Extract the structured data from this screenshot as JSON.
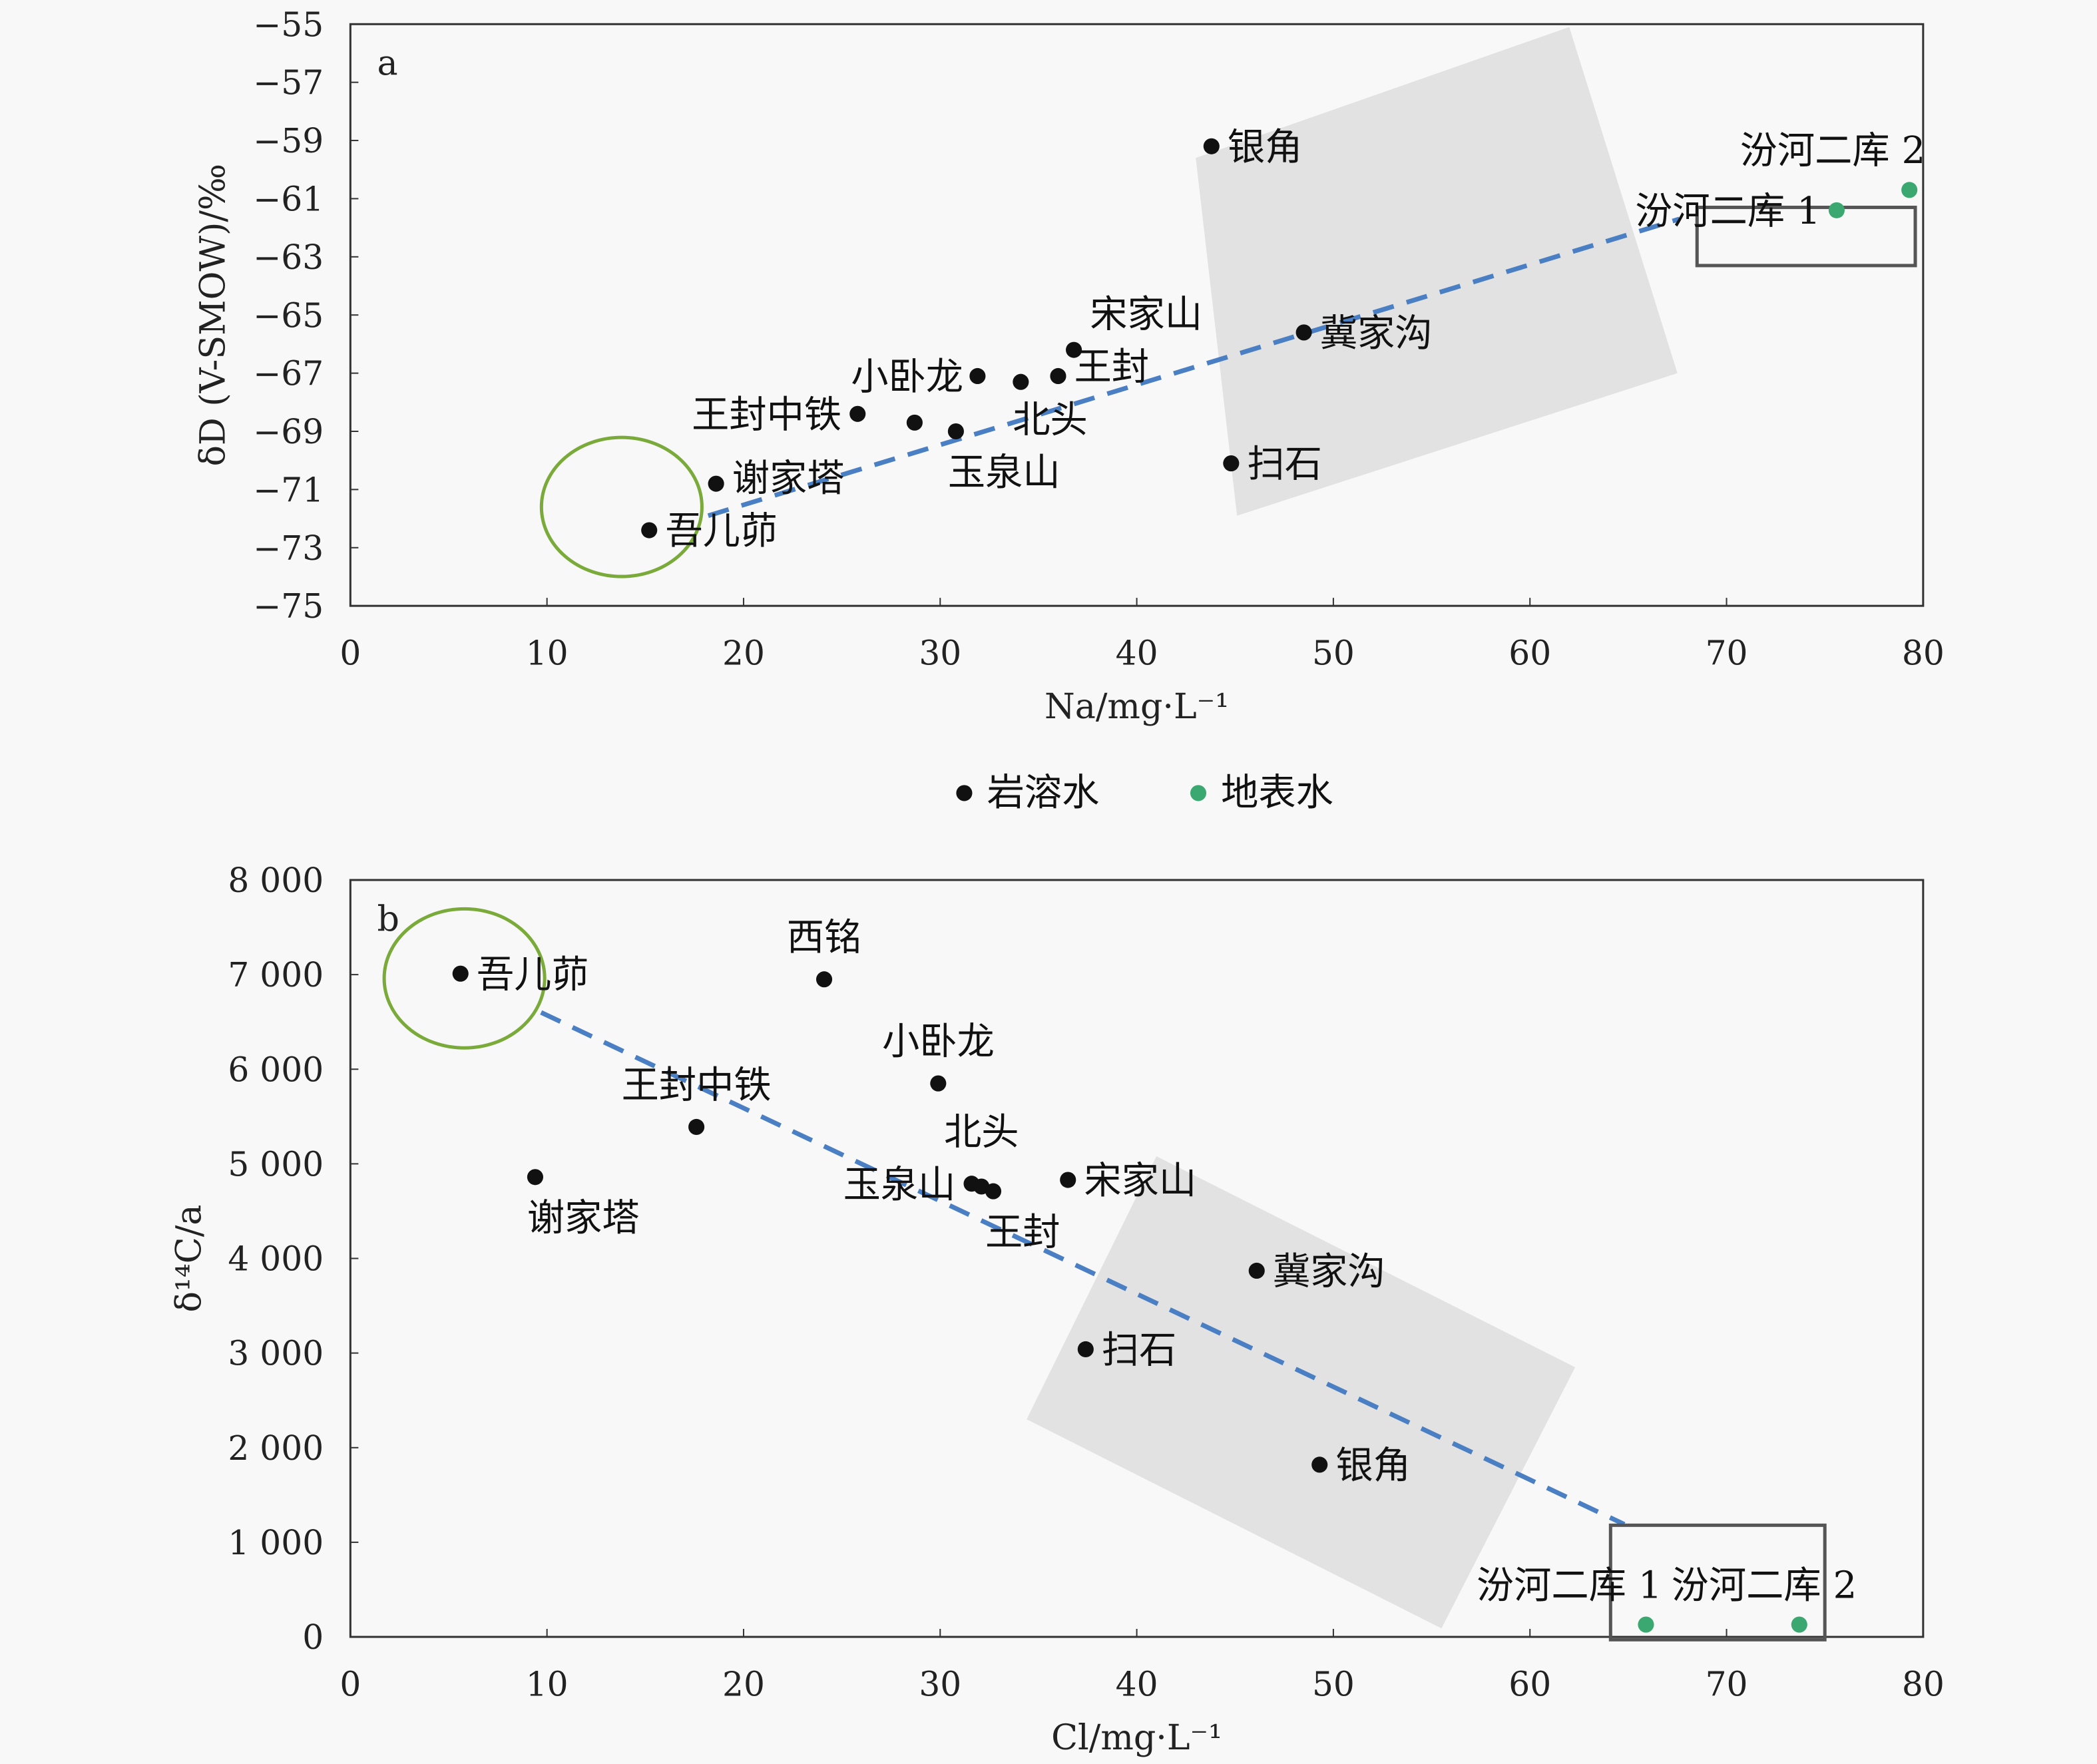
{
  "legend": [
    {
      "name": "岩溶水",
      "color": "#111111"
    },
    {
      "name": "地表水",
      "color": "#3aa870"
    }
  ],
  "chart_data": [
    {
      "type": "scatter",
      "panel_label": "a",
      "xlabel": "Na/mg·L⁻¹",
      "ylabel": "δD (V-SMOW)/‰",
      "xlim": [
        0,
        80
      ],
      "ylim": [
        -75,
        -55
      ],
      "xticks": [
        "0",
        "10",
        "20",
        "30",
        "40",
        "50",
        "60",
        "70",
        "80"
      ],
      "yticks": [
        "−55",
        "−57",
        "−59",
        "−61",
        "−63",
        "−65",
        "−67",
        "−69",
        "−71",
        "−73",
        "−75"
      ],
      "trendline": {
        "x": [
          18.2,
          67.6
        ],
        "y": [
          -71.9,
          -61.7
        ]
      },
      "points": [
        {
          "label": "吾儿茆",
          "x": 15.2,
          "y": -72.4,
          "type": "岩溶水",
          "pos": "right"
        },
        {
          "label": "谢家塔",
          "x": 18.6,
          "y": -70.8,
          "type": "岩溶水",
          "pos": "right"
        },
        {
          "label": "王封中铁",
          "x": 25.8,
          "y": -68.4,
          "type": "岩溶水",
          "pos": "left"
        },
        {
          "label": "",
          "x": 28.7,
          "y": -68.7,
          "type": "岩溶水",
          "pos": "right"
        },
        {
          "label": "玉泉山",
          "x": 30.8,
          "y": -69.0,
          "type": "岩溶水",
          "pos": "below"
        },
        {
          "label": "小卧龙",
          "x": 31.9,
          "y": -67.1,
          "type": "岩溶水",
          "pos": "left"
        },
        {
          "label": "北头",
          "x": 34.1,
          "y": -67.3,
          "type": "岩溶水",
          "pos": "below"
        },
        {
          "label": "王封",
          "x": 36.0,
          "y": -67.1,
          "type": "岩溶水",
          "pos": "right"
        },
        {
          "label": "宋家山",
          "x": 36.8,
          "y": -66.2,
          "type": "岩溶水",
          "pos": "right"
        },
        {
          "label": "银角",
          "x": 43.8,
          "y": -59.2,
          "type": "岩溶水",
          "pos": "right"
        },
        {
          "label": "冀家沟",
          "x": 48.5,
          "y": -65.6,
          "type": "岩溶水",
          "pos": "right"
        },
        {
          "label": "扫石",
          "x": 44.8,
          "y": -70.1,
          "type": "岩溶水",
          "pos": "right"
        },
        {
          "label": "汾河二库 1",
          "x": 75.6,
          "y": -61.4,
          "type": "地表水",
          "pos": "left"
        },
        {
          "label": "汾河二库 2",
          "x": 79.3,
          "y": -60.7,
          "type": "地表水",
          "pos": "above-left"
        }
      ]
    },
    {
      "type": "scatter",
      "panel_label": "b",
      "xlabel": "Cl/mg·L⁻¹",
      "ylabel": "δ¹⁴C/a",
      "xlim": [
        0,
        80
      ],
      "ylim": [
        0,
        8000
      ],
      "xticks": [
        "0",
        "10",
        "20",
        "30",
        "40",
        "50",
        "60",
        "70",
        "80"
      ],
      "yticks": [
        "0",
        "1 000",
        "2 000",
        "3 000",
        "4 000",
        "5 000",
        "6 000",
        "7 000",
        "8 000"
      ],
      "trendline": {
        "x": [
          9.7,
          64.8
        ],
        "y": [
          6600,
          1190
        ]
      },
      "points": [
        {
          "label": "吾儿茆",
          "x": 5.6,
          "y": 7010,
          "type": "岩溶水",
          "pos": "right"
        },
        {
          "label": "西铭",
          "x": 24.1,
          "y": 6950,
          "type": "岩溶水",
          "pos": "above"
        },
        {
          "label": "小卧龙",
          "x": 29.9,
          "y": 5850,
          "type": "岩溶水",
          "pos": "above"
        },
        {
          "label": "王封中铁",
          "x": 17.6,
          "y": 5390,
          "type": "岩溶水",
          "pos": "above"
        },
        {
          "label": "谢家塔",
          "x": 9.4,
          "y": 4860,
          "type": "岩溶水",
          "pos": "below"
        },
        {
          "label": "玉泉山",
          "x": 31.6,
          "y": 4790,
          "type": "岩溶水",
          "pos": "left"
        },
        {
          "label": "北头",
          "x": 32.1,
          "y": 4760,
          "type": "岩溶水",
          "pos": "above"
        },
        {
          "label": "王封",
          "x": 32.7,
          "y": 4710,
          "type": "岩溶水",
          "pos": "below"
        },
        {
          "label": "宋家山",
          "x": 36.5,
          "y": 4830,
          "type": "岩溶水",
          "pos": "right"
        },
        {
          "label": "冀家沟",
          "x": 46.1,
          "y": 3870,
          "type": "岩溶水",
          "pos": "right"
        },
        {
          "label": "扫石",
          "x": 37.4,
          "y": 3040,
          "type": "岩溶水",
          "pos": "right"
        },
        {
          "label": "银角",
          "x": 49.3,
          "y": 1820,
          "type": "岩溶水",
          "pos": "right"
        },
        {
          "label": "汾河二库 1",
          "x": 65.9,
          "y": 130,
          "type": "地表水",
          "pos": "above-left"
        },
        {
          "label": "汾河二库 2",
          "x": 73.7,
          "y": 130,
          "type": "地表水",
          "pos": "above-left"
        }
      ]
    }
  ]
}
